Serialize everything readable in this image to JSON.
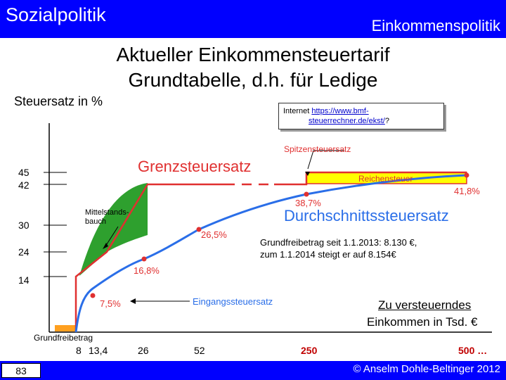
{
  "header": {
    "title": "Sozialpolitik",
    "subtitle": "Einkommenspolitik"
  },
  "slide": {
    "title_line1": "Aktueller Einkommensteuertarif",
    "title_line2": "Grundtabelle, d.h. für Ledige",
    "link_prefix": "Internet ",
    "link_url_part1": "https://www.bmf-",
    "link_url_part2": "steuerrechner.de/ekst/",
    "link_suffix": "?",
    "note_line1": "Grundfreibetrag seit 1.1.2013: 8.130 €,",
    "note_line2": "zum 1.1.2014 steigt er auf  8.154€",
    "page_number": "83",
    "copyright": "© Anselm Dohle-Beltinger 2012"
  },
  "chart_data": {
    "type": "line",
    "ylabel": "Steuersatz in %",
    "xlabel_line1": "Zu versteuerndes",
    "xlabel_line2": "Einkommen in Tsd. €",
    "y_ticks": [
      "45",
      "42",
      "30",
      "24",
      "14"
    ],
    "x_ticks": [
      "8",
      "13,4",
      "26",
      "52",
      "250",
      "500 …"
    ],
    "series": [
      {
        "name": "Grenzsteuersatz",
        "color": "#e03030",
        "points": [
          [
            "8",
            0
          ],
          [
            "8",
            14
          ],
          [
            "13,4",
            24
          ],
          [
            "52",
            42
          ],
          [
            "250",
            42
          ],
          [
            "250",
            45
          ],
          [
            "500 …",
            45
          ]
        ]
      },
      {
        "name": "Durchschnittssteuersatz",
        "color": "#2a6ee8",
        "points": [
          [
            "8",
            0
          ],
          [
            "13,4",
            7.5
          ],
          [
            "26",
            16.8
          ],
          [
            "52",
            26.5
          ],
          [
            "250",
            38.7
          ],
          [
            "500 …",
            41.8
          ]
        ]
      }
    ],
    "point_labels": [
      "7,5%",
      "16,8%",
      "26,5%",
      "38,7%",
      "41,8%"
    ],
    "annotations": {
      "spitzensteuersatz": "Spitzensteuersatz",
      "reichensteuer": "Reichensteuer",
      "mittelstandsbauch_1": "Mittelstands-",
      "mittelstandsbauch_2": "bauch",
      "eingangssteuersatz": "Eingangssteuersatz",
      "grundfreibetrag": "Grundfreibetrag"
    },
    "colors": {
      "marginal": "#e03030",
      "average": "#2a6ee8",
      "belly": "#2ea02e",
      "reichensteuer": "#ffff00",
      "grundfreibetrag": "#ffa020",
      "bar_outline": "#e03030"
    }
  }
}
